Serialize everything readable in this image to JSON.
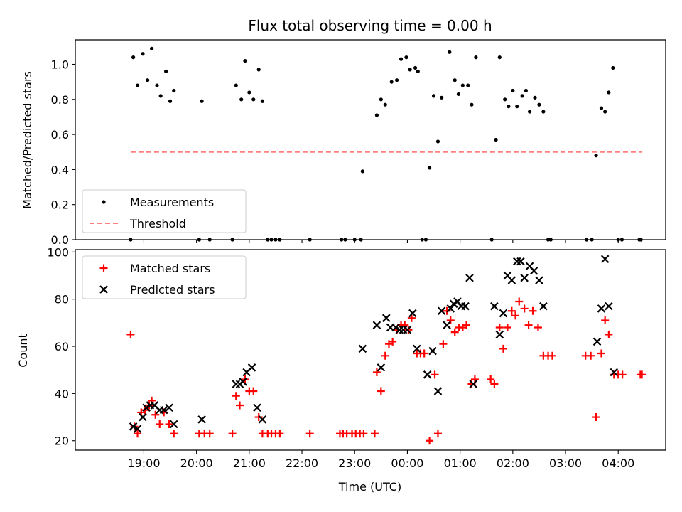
{
  "figure": {
    "title": "Flux total observing time = 0.00 h"
  },
  "chart_data": [
    {
      "type": "scatter",
      "panel": "top",
      "ylabel": "Matched/Predicted stars",
      "xlabel": "",
      "ylim": [
        0,
        1.14
      ],
      "yticks": [
        0.0,
        0.2,
        0.4,
        0.6,
        0.8,
        1.0
      ],
      "ytick_labels": [
        "0.0",
        "0.2",
        "0.4",
        "0.6",
        "0.8",
        "1.0"
      ],
      "xlim": [
        17.7,
        28.9
      ],
      "legend_position": "lower-left",
      "series": [
        {
          "name": "Measurements",
          "color": "#000000",
          "marker": "dot",
          "points": [
            [
              18.75,
              0.0
            ],
            [
              18.8,
              1.04
            ],
            [
              18.88,
              0.88
            ],
            [
              18.98,
              1.06
            ],
            [
              19.07,
              0.91
            ],
            [
              19.15,
              1.09
            ],
            [
              19.25,
              0.88
            ],
            [
              19.32,
              0.82
            ],
            [
              19.42,
              0.96
            ],
            [
              19.5,
              0.79
            ],
            [
              19.57,
              0.85
            ],
            [
              20.05,
              0.0
            ],
            [
              20.1,
              0.79
            ],
            [
              20.25,
              0.0
            ],
            [
              20.68,
              0.0
            ],
            [
              20.75,
              0.88
            ],
            [
              20.85,
              0.8
            ],
            [
              20.92,
              1.02
            ],
            [
              21.0,
              0.84
            ],
            [
              21.08,
              0.8
            ],
            [
              21.18,
              0.97
            ],
            [
              21.25,
              0.79
            ],
            [
              21.35,
              0.0
            ],
            [
              21.42,
              0.0
            ],
            [
              21.5,
              0.0
            ],
            [
              21.58,
              0.0
            ],
            [
              22.15,
              0.0
            ],
            [
              22.75,
              0.0
            ],
            [
              22.82,
              0.0
            ],
            [
              23.0,
              0.0
            ],
            [
              23.12,
              0.0
            ],
            [
              23.15,
              0.39
            ],
            [
              23.42,
              0.71
            ],
            [
              23.5,
              0.8
            ],
            [
              23.58,
              0.77
            ],
            [
              23.7,
              0.9
            ],
            [
              23.8,
              0.91
            ],
            [
              23.88,
              1.03
            ],
            [
              23.98,
              1.04
            ],
            [
              24.05,
              0.97
            ],
            [
              24.15,
              0.98
            ],
            [
              24.2,
              0.96
            ],
            [
              24.28,
              0.0
            ],
            [
              24.35,
              0.0
            ],
            [
              24.42,
              0.41
            ],
            [
              24.5,
              0.82
            ],
            [
              24.58,
              0.56
            ],
            [
              24.65,
              0.81
            ],
            [
              24.8,
              1.07
            ],
            [
              24.9,
              0.91
            ],
            [
              24.97,
              0.83
            ],
            [
              25.05,
              0.88
            ],
            [
              25.15,
              0.88
            ],
            [
              25.22,
              0.77
            ],
            [
              25.3,
              1.04
            ],
            [
              25.6,
              0.0
            ],
            [
              25.68,
              0.57
            ],
            [
              25.75,
              1.04
            ],
            [
              25.85,
              0.8
            ],
            [
              25.92,
              0.76
            ],
            [
              26.0,
              0.85
            ],
            [
              26.08,
              0.76
            ],
            [
              26.18,
              0.82
            ],
            [
              26.25,
              0.85
            ],
            [
              26.32,
              0.73
            ],
            [
              26.42,
              0.81
            ],
            [
              26.5,
              0.77
            ],
            [
              26.58,
              0.73
            ],
            [
              26.67,
              0.0
            ],
            [
              26.72,
              0.0
            ],
            [
              27.4,
              0.0
            ],
            [
              27.5,
              0.0
            ],
            [
              27.58,
              0.48
            ],
            [
              27.68,
              0.75
            ],
            [
              27.75,
              0.73
            ],
            [
              27.82,
              0.84
            ],
            [
              27.9,
              0.98
            ],
            [
              28.0,
              0.0
            ],
            [
              28.07,
              0.0
            ],
            [
              28.4,
              0.0
            ],
            [
              28.43,
              0.0
            ]
          ]
        },
        {
          "name": "Threshold",
          "color": "#ff7f7f",
          "marker": "dashed-line",
          "points": [
            [
              18.75,
              0.5
            ],
            [
              28.45,
              0.5
            ]
          ]
        }
      ]
    },
    {
      "type": "scatter",
      "panel": "bottom",
      "ylabel": "Count",
      "xlabel": "Time (UTC)",
      "ylim": [
        16,
        101
      ],
      "yticks": [
        20,
        40,
        60,
        80,
        100
      ],
      "ytick_labels": [
        "20",
        "40",
        "60",
        "80",
        "100"
      ],
      "xlim": [
        17.7,
        28.9
      ],
      "xticks": [
        19,
        20,
        21,
        22,
        23,
        24,
        25,
        26,
        27,
        28
      ],
      "xtick_labels": [
        "19:00",
        "20:00",
        "21:00",
        "22:00",
        "23:00",
        "00:00",
        "01:00",
        "02:00",
        "03:00",
        "04:00"
      ],
      "legend_position": "upper-left",
      "series": [
        {
          "name": "Matched stars",
          "color": "#ff0000",
          "marker": "plus",
          "points": [
            [
              18.75,
              65
            ],
            [
              18.82,
              26
            ],
            [
              18.88,
              23
            ],
            [
              18.95,
              32
            ],
            [
              19.02,
              33
            ],
            [
              19.1,
              35
            ],
            [
              19.15,
              37
            ],
            [
              19.22,
              31
            ],
            [
              19.3,
              27
            ],
            [
              19.38,
              32
            ],
            [
              19.48,
              27
            ],
            [
              19.57,
              23
            ],
            [
              20.05,
              23
            ],
            [
              20.15,
              23
            ],
            [
              20.25,
              23
            ],
            [
              20.68,
              23
            ],
            [
              20.75,
              39
            ],
            [
              20.82,
              35
            ],
            [
              20.92,
              46
            ],
            [
              21.0,
              41
            ],
            [
              21.08,
              41
            ],
            [
              21.18,
              30
            ],
            [
              21.25,
              23
            ],
            [
              21.35,
              23
            ],
            [
              21.42,
              23
            ],
            [
              21.5,
              23
            ],
            [
              21.58,
              23
            ],
            [
              22.15,
              23
            ],
            [
              22.72,
              23
            ],
            [
              22.78,
              23
            ],
            [
              22.85,
              23
            ],
            [
              22.95,
              23
            ],
            [
              23.02,
              23
            ],
            [
              23.1,
              23
            ],
            [
              23.17,
              23
            ],
            [
              23.38,
              23
            ],
            [
              23.42,
              49
            ],
            [
              23.5,
              41
            ],
            [
              23.58,
              56
            ],
            [
              23.65,
              61
            ],
            [
              23.72,
              62
            ],
            [
              23.8,
              67
            ],
            [
              23.88,
              69
            ],
            [
              23.95,
              69
            ],
            [
              24.02,
              67
            ],
            [
              24.08,
              72
            ],
            [
              24.18,
              57
            ],
            [
              24.25,
              57
            ],
            [
              24.32,
              57
            ],
            [
              24.42,
              20
            ],
            [
              24.52,
              48
            ],
            [
              24.58,
              23
            ],
            [
              24.68,
              61
            ],
            [
              24.75,
              75
            ],
            [
              24.82,
              71
            ],
            [
              24.9,
              66
            ],
            [
              24.98,
              68
            ],
            [
              25.05,
              68
            ],
            [
              25.12,
              69
            ],
            [
              25.22,
              44
            ],
            [
              25.28,
              46
            ],
            [
              25.58,
              46
            ],
            [
              25.65,
              44
            ],
            [
              25.75,
              68
            ],
            [
              25.82,
              59
            ],
            [
              25.9,
              68
            ],
            [
              25.98,
              75
            ],
            [
              26.05,
              73
            ],
            [
              26.12,
              79
            ],
            [
              26.22,
              76
            ],
            [
              26.3,
              69
            ],
            [
              26.38,
              75
            ],
            [
              26.48,
              68
            ],
            [
              26.58,
              56
            ],
            [
              26.67,
              56
            ],
            [
              26.75,
              56
            ],
            [
              27.38,
              56
            ],
            [
              27.48,
              56
            ],
            [
              27.58,
              30
            ],
            [
              27.68,
              57
            ],
            [
              27.75,
              71
            ],
            [
              27.82,
              65
            ],
            [
              27.92,
              48
            ],
            [
              28.0,
              48
            ],
            [
              28.08,
              48
            ],
            [
              28.42,
              48
            ],
            [
              28.45,
              48
            ]
          ]
        },
        {
          "name": "Predicted stars",
          "color": "#000000",
          "marker": "cross",
          "points": [
            [
              18.8,
              26
            ],
            [
              18.88,
              25
            ],
            [
              18.98,
              30
            ],
            [
              19.05,
              34
            ],
            [
              19.12,
              35
            ],
            [
              19.2,
              35
            ],
            [
              19.3,
              33
            ],
            [
              19.38,
              33
            ],
            [
              19.48,
              34
            ],
            [
              19.57,
              27
            ],
            [
              20.1,
              29
            ],
            [
              20.75,
              44
            ],
            [
              20.82,
              44
            ],
            [
              20.88,
              45
            ],
            [
              20.95,
              49
            ],
            [
              21.05,
              51
            ],
            [
              21.15,
              34
            ],
            [
              21.25,
              29
            ],
            [
              23.15,
              59
            ],
            [
              23.42,
              69
            ],
            [
              23.5,
              51
            ],
            [
              23.6,
              72
            ],
            [
              23.68,
              68
            ],
            [
              23.78,
              68
            ],
            [
              23.85,
              67
            ],
            [
              23.92,
              67
            ],
            [
              24.0,
              67
            ],
            [
              24.1,
              74
            ],
            [
              24.18,
              59
            ],
            [
              24.38,
              48
            ],
            [
              24.48,
              58
            ],
            [
              24.58,
              41
            ],
            [
              24.65,
              75
            ],
            [
              24.75,
              69
            ],
            [
              24.82,
              76
            ],
            [
              24.88,
              78
            ],
            [
              24.95,
              79
            ],
            [
              25.02,
              77
            ],
            [
              25.1,
              77
            ],
            [
              25.18,
              89
            ],
            [
              25.25,
              44
            ],
            [
              25.65,
              77
            ],
            [
              25.75,
              65
            ],
            [
              25.82,
              74
            ],
            [
              25.9,
              90
            ],
            [
              25.98,
              88
            ],
            [
              26.08,
              96
            ],
            [
              26.15,
              96
            ],
            [
              26.22,
              89
            ],
            [
              26.32,
              94
            ],
            [
              26.4,
              92
            ],
            [
              26.5,
              88
            ],
            [
              26.58,
              77
            ],
            [
              27.6,
              62
            ],
            [
              27.68,
              76
            ],
            [
              27.75,
              97
            ],
            [
              27.82,
              77
            ],
            [
              27.92,
              49
            ]
          ]
        }
      ]
    }
  ]
}
